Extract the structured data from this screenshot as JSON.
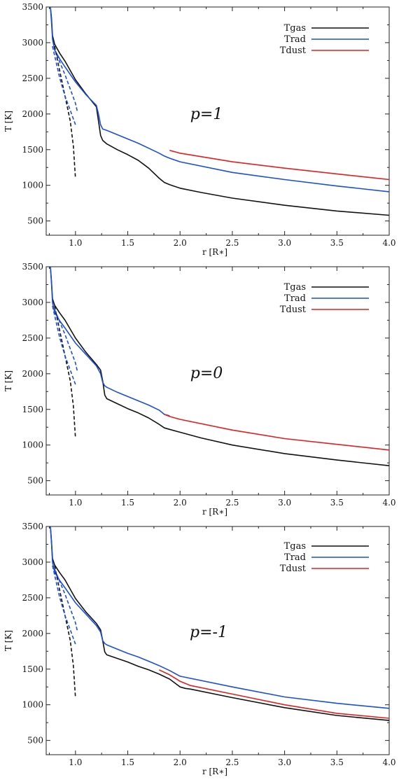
{
  "chart_data": [
    {
      "type": "line",
      "annotation": "p=1",
      "xlabel": "r [R∗]",
      "ylabel": "T [K]",
      "xlim": [
        0.72,
        4.0
      ],
      "ylim": [
        300,
        3500
      ],
      "x_ticks": [
        "1.0",
        "1.5",
        "2.0",
        "2.5",
        "3.0",
        "3.5",
        "4.0"
      ],
      "y_ticks": [
        "500",
        "1000",
        "1500",
        "2000",
        "2500",
        "3000",
        "3500"
      ],
      "legend": "top-right",
      "series": [
        {
          "name": "Tgas",
          "color": "#111111",
          "style": "solid",
          "x": [
            0.76,
            0.77,
            0.78,
            0.8,
            0.85,
            0.9,
            1.0,
            1.1,
            1.2,
            1.22,
            1.24,
            1.26,
            1.3,
            1.4,
            1.5,
            1.6,
            1.7,
            1.8,
            1.85,
            1.9,
            2.0,
            2.2,
            2.5,
            3.0,
            3.5,
            4.0
          ],
          "y": [
            3500,
            3350,
            3100,
            2980,
            2850,
            2740,
            2480,
            2280,
            2100,
            1900,
            1700,
            1630,
            1580,
            1500,
            1430,
            1350,
            1240,
            1100,
            1040,
            1010,
            960,
            900,
            820,
            720,
            640,
            580
          ]
        },
        {
          "name": "Trad",
          "color": "#1a4fd6",
          "style": "solid",
          "x": [
            0.76,
            0.77,
            0.78,
            0.8,
            0.85,
            0.9,
            1.0,
            1.1,
            1.2,
            1.22,
            1.24,
            1.26,
            1.3,
            1.4,
            1.5,
            1.6,
            1.7,
            1.8,
            1.85,
            1.9,
            2.0,
            2.5,
            3.0,
            3.5,
            4.0
          ],
          "y": [
            3500,
            3300,
            3050,
            2900,
            2770,
            2660,
            2450,
            2270,
            2120,
            2000,
            1850,
            1790,
            1770,
            1710,
            1650,
            1590,
            1520,
            1450,
            1410,
            1380,
            1330,
            1180,
            1080,
            990,
            910
          ]
        },
        {
          "name": "Tdust",
          "color": "#e02020",
          "style": "solid",
          "x": [
            1.9,
            2.0,
            2.5,
            3.0,
            3.5,
            4.0
          ],
          "y": [
            1490,
            1450,
            1330,
            1240,
            1160,
            1080
          ]
        },
        {
          "name": "",
          "color": "#111111",
          "style": "dashed",
          "x": [
            0.8,
            0.85,
            0.9,
            0.95,
            0.98,
            1.0
          ],
          "y": [
            2950,
            2600,
            2250,
            1900,
            1550,
            1100
          ]
        },
        {
          "name": "",
          "color": "#1a4fd6",
          "style": "dashed",
          "x": [
            0.78,
            0.85,
            0.9,
            0.95,
            1.0
          ],
          "y": [
            2950,
            2500,
            2250,
            2050,
            1850
          ]
        },
        {
          "name": "",
          "color": "#1a4fd6",
          "style": "dashed",
          "x": [
            0.8,
            0.9,
            1.0,
            1.02
          ],
          "y": [
            2900,
            2550,
            2150,
            2020
          ]
        }
      ]
    },
    {
      "type": "line",
      "annotation": "p=0",
      "xlabel": "r [R∗]",
      "ylabel": "T [K]",
      "xlim": [
        0.72,
        4.0
      ],
      "ylim": [
        300,
        3500
      ],
      "x_ticks": [
        "1.0",
        "1.5",
        "2.0",
        "2.5",
        "3.0",
        "3.5",
        "4.0"
      ],
      "y_ticks": [
        "500",
        "1000",
        "1500",
        "2000",
        "2500",
        "3000",
        "3500"
      ],
      "legend": "top-right",
      "series": [
        {
          "name": "Tgas",
          "color": "#111111",
          "style": "solid",
          "x": [
            0.76,
            0.77,
            0.78,
            0.8,
            0.85,
            0.9,
            1.0,
            1.1,
            1.2,
            1.24,
            1.26,
            1.28,
            1.3,
            1.4,
            1.5,
            1.6,
            1.7,
            1.8,
            1.85,
            1.9,
            2.0,
            2.2,
            2.5,
            3.0,
            3.5,
            4.0
          ],
          "y": [
            3500,
            3300,
            3050,
            2960,
            2850,
            2750,
            2500,
            2300,
            2130,
            2050,
            1900,
            1700,
            1650,
            1580,
            1510,
            1450,
            1380,
            1290,
            1240,
            1220,
            1180,
            1100,
            1000,
            880,
            790,
            710
          ]
        },
        {
          "name": "Trad",
          "color": "#1a4fd6",
          "style": "solid",
          "x": [
            0.76,
            0.77,
            0.78,
            0.8,
            0.85,
            0.9,
            1.0,
            1.1,
            1.2,
            1.24,
            1.26,
            1.28,
            1.3,
            1.4,
            1.5,
            1.6,
            1.7,
            1.8,
            1.85,
            1.9
          ],
          "y": [
            3500,
            3280,
            3000,
            2860,
            2740,
            2640,
            2430,
            2270,
            2110,
            2000,
            1880,
            1830,
            1810,
            1740,
            1680,
            1620,
            1560,
            1490,
            1430,
            1410
          ]
        },
        {
          "name": "Tdust",
          "color": "#e02020",
          "style": "solid",
          "x": [
            1.85,
            1.9,
            2.0,
            2.5,
            3.0,
            3.5,
            4.0
          ],
          "y": [
            1430,
            1400,
            1360,
            1210,
            1090,
            1010,
            930
          ]
        },
        {
          "name": "",
          "color": "#111111",
          "style": "dashed",
          "x": [
            0.8,
            0.85,
            0.9,
            0.95,
            0.98,
            1.0
          ],
          "y": [
            2950,
            2600,
            2250,
            1900,
            1550,
            1100
          ]
        },
        {
          "name": "",
          "color": "#1a4fd6",
          "style": "dashed",
          "x": [
            0.78,
            0.85,
            0.9,
            0.95,
            1.0
          ],
          "y": [
            2950,
            2500,
            2250,
            2050,
            1850
          ]
        },
        {
          "name": "",
          "color": "#1a4fd6",
          "style": "dashed",
          "x": [
            0.8,
            0.9,
            1.0,
            1.02
          ],
          "y": [
            2900,
            2550,
            2150,
            2020
          ]
        }
      ]
    },
    {
      "type": "line",
      "annotation": "p=-1",
      "xlabel": "r [R∗]",
      "ylabel": "T [K]",
      "xlim": [
        0.72,
        4.0
      ],
      "ylim": [
        300,
        3500
      ],
      "x_ticks": [
        "1.0",
        "1.5",
        "2.0",
        "2.5",
        "3.0",
        "3.5",
        "4.0"
      ],
      "y_ticks": [
        "500",
        "1000",
        "1500",
        "2000",
        "2500",
        "3000",
        "3500"
      ],
      "legend": "top-right",
      "series": [
        {
          "name": "Tgas",
          "color": "#111111",
          "style": "solid",
          "x": [
            0.76,
            0.77,
            0.78,
            0.8,
            0.85,
            0.9,
            1.0,
            1.1,
            1.2,
            1.24,
            1.26,
            1.28,
            1.3,
            1.4,
            1.5,
            1.6,
            1.7,
            1.8,
            1.9,
            2.0,
            2.05,
            2.1,
            2.5,
            3.0,
            3.5,
            4.0
          ],
          "y": [
            3500,
            3300,
            3050,
            2960,
            2850,
            2750,
            2490,
            2300,
            2140,
            2050,
            1900,
            1740,
            1700,
            1650,
            1600,
            1540,
            1490,
            1430,
            1360,
            1250,
            1230,
            1220,
            1100,
            960,
            850,
            780
          ]
        },
        {
          "name": "Trad",
          "color": "#1a4fd6",
          "style": "solid",
          "x": [
            0.76,
            0.77,
            0.78,
            0.8,
            0.85,
            0.9,
            1.0,
            1.1,
            1.2,
            1.24,
            1.26,
            1.28,
            1.3,
            1.4,
            1.5,
            1.6,
            1.7,
            1.8,
            1.9,
            2.0,
            2.5,
            3.0,
            3.5,
            4.0
          ],
          "y": [
            3500,
            3280,
            3000,
            2860,
            2740,
            2640,
            2430,
            2270,
            2110,
            2020,
            1900,
            1860,
            1840,
            1780,
            1720,
            1670,
            1610,
            1550,
            1480,
            1400,
            1250,
            1110,
            1020,
            950
          ]
        },
        {
          "name": "Tdust",
          "color": "#e02020",
          "style": "solid",
          "x": [
            1.8,
            1.9,
            2.0,
            2.1,
            2.5,
            3.0,
            3.5,
            4.0
          ],
          "y": [
            1490,
            1420,
            1330,
            1270,
            1150,
            1000,
            880,
            810
          ]
        },
        {
          "name": "",
          "color": "#111111",
          "style": "dashed",
          "x": [
            0.8,
            0.85,
            0.9,
            0.95,
            0.98,
            1.0
          ],
          "y": [
            2950,
            2600,
            2250,
            1900,
            1550,
            1100
          ]
        },
        {
          "name": "",
          "color": "#1a4fd6",
          "style": "dashed",
          "x": [
            0.78,
            0.85,
            0.9,
            0.95,
            1.0
          ],
          "y": [
            2950,
            2500,
            2250,
            2050,
            1850
          ]
        },
        {
          "name": "",
          "color": "#1a4fd6",
          "style": "dashed",
          "x": [
            0.8,
            0.9,
            1.0,
            1.02
          ],
          "y": [
            2900,
            2550,
            2150,
            2020
          ]
        }
      ]
    }
  ]
}
